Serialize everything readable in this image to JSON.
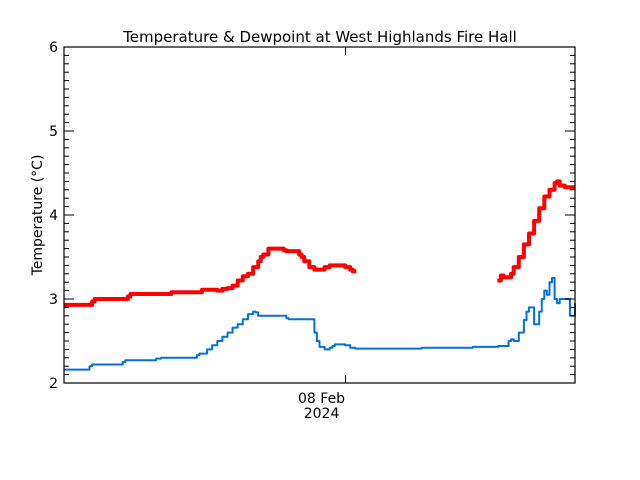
{
  "chart_data": {
    "type": "line",
    "title": "Temperature & Dewpoint at West Highlands Fire Hall",
    "xlabel": "",
    "ylabel": "Temperature (°C)",
    "ylim": [
      2,
      6
    ],
    "yticks": [
      "2",
      "3",
      "4",
      "5",
      "6"
    ],
    "x_tick_labels": [
      {
        "line1": "08 Feb",
        "line2": "2024",
        "x_fraction": 0.551
      }
    ],
    "grid": false,
    "legend": "none",
    "x_fraction_domain": [
      0,
      1
    ],
    "series": [
      {
        "name": "Temperature",
        "color": "#ff0000",
        "segments": [
          {
            "x": [
              0.0,
              0.05,
              0.055,
              0.06,
              0.12,
              0.125,
              0.13,
              0.2,
              0.21,
              0.26,
              0.27,
              0.28,
              0.29,
              0.3,
              0.31,
              0.32,
              0.33,
              0.34,
              0.35,
              0.36,
              0.37,
              0.38,
              0.385,
              0.39,
              0.4,
              0.43,
              0.435,
              0.44,
              0.455,
              0.46,
              0.465,
              0.47,
              0.48,
              0.49,
              0.5,
              0.51,
              0.52,
              0.53,
              0.54,
              0.55,
              0.56,
              0.565,
              0.572
            ],
            "y": [
              2.93,
              2.93,
              2.97,
              3.0,
              3.0,
              3.03,
              3.06,
              3.06,
              3.08,
              3.08,
              3.11,
              3.11,
              3.11,
              3.1,
              3.12,
              3.13,
              3.16,
              3.22,
              3.27,
              3.3,
              3.38,
              3.45,
              3.5,
              3.53,
              3.6,
              3.58,
              3.57,
              3.57,
              3.57,
              3.53,
              3.5,
              3.45,
              3.38,
              3.35,
              3.35,
              3.38,
              3.4,
              3.4,
              3.4,
              3.38,
              3.35,
              3.33,
              3.33
            ]
          },
          {
            "x": [
              0.848,
              0.855,
              0.86,
              0.87,
              0.875,
              0.88,
              0.89,
              0.9,
              0.91,
              0.92,
              0.93,
              0.94,
              0.95,
              0.96,
              0.965,
              0.97,
              0.98,
              0.99,
              1.0
            ],
            "y": [
              3.22,
              3.28,
              3.26,
              3.26,
              3.3,
              3.38,
              3.5,
              3.65,
              3.78,
              3.93,
              4.08,
              4.22,
              4.3,
              4.38,
              4.4,
              4.35,
              4.33,
              4.33,
              4.33
            ]
          }
        ]
      },
      {
        "name": "Dewpoint",
        "color": "#0070e0",
        "segments": [
          {
            "x": [
              0.0,
              0.045,
              0.05,
              0.055,
              0.11,
              0.115,
              0.12,
              0.175,
              0.18,
              0.19,
              0.255,
              0.26,
              0.265,
              0.28,
              0.29,
              0.3,
              0.31,
              0.32,
              0.33,
              0.34,
              0.35,
              0.36,
              0.37,
              0.375,
              0.38,
              0.39,
              0.4,
              0.43,
              0.435,
              0.44,
              0.48,
              0.49,
              0.495,
              0.5,
              0.51,
              0.52,
              0.525,
              0.53,
              0.54,
              0.55,
              0.56,
              0.57,
              0.6,
              0.7,
              0.8,
              0.85,
              0.86,
              0.87,
              0.875,
              0.88,
              0.89,
              0.9,
              0.905,
              0.91,
              0.92,
              0.93,
              0.935,
              0.94,
              0.945,
              0.95,
              0.955,
              0.96,
              0.965,
              0.97,
              0.99,
              0.995,
              1.0
            ],
            "y": [
              2.16,
              2.16,
              2.2,
              2.22,
              2.22,
              2.25,
              2.27,
              2.27,
              2.29,
              2.3,
              2.3,
              2.33,
              2.35,
              2.4,
              2.45,
              2.5,
              2.55,
              2.6,
              2.66,
              2.7,
              2.76,
              2.82,
              2.85,
              2.84,
              2.8,
              2.8,
              2.8,
              2.8,
              2.77,
              2.76,
              2.76,
              2.6,
              2.5,
              2.43,
              2.4,
              2.42,
              2.44,
              2.46,
              2.46,
              2.45,
              2.42,
              2.41,
              2.41,
              2.42,
              2.43,
              2.44,
              2.44,
              2.5,
              2.52,
              2.5,
              2.6,
              2.75,
              2.85,
              2.9,
              2.7,
              2.85,
              3.0,
              3.1,
              3.05,
              3.2,
              3.25,
              3.0,
              2.95,
              3.0,
              2.8,
              2.8,
              2.95
            ]
          }
        ]
      }
    ]
  }
}
